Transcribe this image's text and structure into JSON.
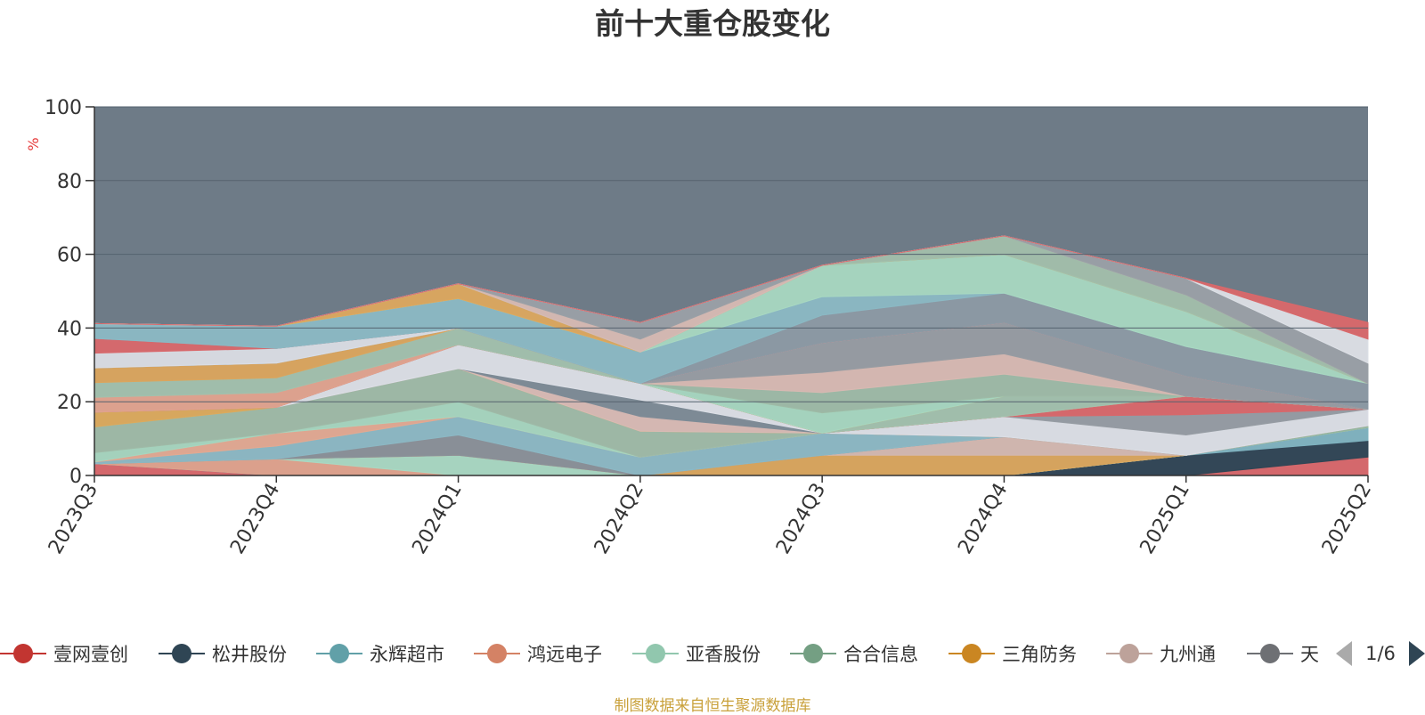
{
  "chart_data": {
    "type": "area",
    "title": "前十大重仓股变化",
    "ylabel": "%",
    "ylim": [
      0,
      100
    ],
    "yticks": [
      "0",
      "20",
      "40",
      "60",
      "80",
      "100"
    ],
    "categories": [
      "2023Q3",
      "2023Q4",
      "2024Q1",
      "2024Q2",
      "2024Q3",
      "2024Q4",
      "2025Q1",
      "2025Q2"
    ],
    "grid": true,
    "background_color": "#6e7b87",
    "series": [
      {
        "name": "壹网壹创",
        "color": "#d9676a",
        "values": [
          3.2,
          0,
          0,
          0,
          0,
          0,
          0,
          5
        ]
      },
      {
        "name": "松井股份",
        "color": "#2f4554",
        "values": [
          0,
          0,
          0,
          0,
          0,
          0,
          5.5,
          4.5
        ]
      },
      {
        "name": "永辉超市",
        "color": "#7fb3c0",
        "values": [
          0,
          0,
          0,
          0,
          0,
          0,
          0,
          3.5
        ]
      },
      {
        "name": "鸿远电子",
        "color": "#e0a28c",
        "values": [
          0,
          4.5,
          0,
          0,
          0,
          0,
          0,
          0
        ]
      },
      {
        "name": "亚香股份",
        "color": "#a9d8c2",
        "values": [
          0,
          0,
          5.5,
          0,
          0,
          0,
          0,
          0
        ]
      },
      {
        "name": "合合信息",
        "color": "#96b8a0",
        "values": [
          0,
          0,
          0,
          0,
          0,
          0,
          0,
          0.5
        ]
      },
      {
        "name": "三角防务",
        "color": "#daa55c",
        "values": [
          0,
          0,
          0,
          0,
          5.5,
          5.5,
          0,
          0
        ]
      },
      {
        "name": "九州通",
        "color": "#d4b8b0",
        "values": [
          0,
          0,
          0,
          0,
          0,
          5,
          0,
          0
        ]
      },
      {
        "name": "天铁",
        "color": "#8a9098",
        "values": [
          0,
          0,
          5.5,
          0,
          0,
          0,
          0,
          0
        ]
      },
      {
        "name": "",
        "color": "#8cb8c4",
        "values": [
          0.5,
          3.5,
          5,
          5,
          6,
          0,
          0,
          0
        ]
      },
      {
        "name": "",
        "color": "#e3a991",
        "values": [
          0,
          3.5,
          0,
          0,
          0,
          0,
          0,
          0
        ]
      },
      {
        "name": "",
        "color": "#a6d6bf",
        "values": [
          2.5,
          0,
          4,
          0,
          0,
          0,
          0,
          0
        ]
      },
      {
        "name": "",
        "color": "#9fbaa7",
        "values": [
          7,
          7,
          9,
          7,
          0,
          0,
          0,
          0
        ]
      },
      {
        "name": "",
        "color": "#dcaa5c",
        "values": [
          4,
          0,
          0,
          0,
          0,
          0,
          0,
          0
        ]
      },
      {
        "name": "",
        "color": "#d9bbb4",
        "values": [
          0,
          0,
          0,
          4,
          0,
          0,
          0,
          0
        ]
      },
      {
        "name": "",
        "color": "#7d8b96",
        "values": [
          0,
          0,
          0,
          4.5,
          0,
          0,
          0,
          0
        ]
      },
      {
        "name": "",
        "color": "#dcdfe6",
        "values": [
          0,
          0,
          6.5,
          4.5,
          0,
          5.5,
          5.5,
          4.5
        ]
      },
      {
        "name": "",
        "color": "#969ca3",
        "values": [
          0,
          0,
          0,
          0,
          0,
          0,
          5.5,
          0
        ]
      },
      {
        "name": "",
        "color": "#d9676a",
        "values": [
          0,
          0,
          0,
          0,
          0,
          0,
          5,
          0
        ]
      },
      {
        "name": "",
        "color": "#e1a38e",
        "values": [
          4,
          4,
          0,
          0,
          0,
          0,
          0,
          0
        ]
      },
      {
        "name": "",
        "color": "#a2c1ad",
        "values": [
          4,
          4,
          4.5,
          0,
          0,
          5.5,
          0,
          0
        ]
      },
      {
        "name": "",
        "color": "#dba55d",
        "values": [
          4,
          4,
          0,
          0,
          0,
          0,
          0,
          0
        ]
      },
      {
        "name": "",
        "color": "#a6d7c0",
        "values": [
          0,
          0,
          0,
          0,
          5.5,
          0,
          0,
          0
        ]
      },
      {
        "name": "",
        "color": "#9ebba6",
        "values": [
          0,
          0,
          0,
          0,
          5.5,
          6,
          0,
          0
        ]
      },
      {
        "name": "",
        "color": "#d8b9b2",
        "values": [
          0,
          0,
          0,
          0,
          5.5,
          5.5,
          0,
          0
        ]
      },
      {
        "name": "",
        "color": "#979ca2",
        "values": [
          0,
          0,
          0,
          0,
          8,
          8.5,
          5.5,
          0
        ]
      },
      {
        "name": "",
        "color": "#dadde4",
        "values": [
          4,
          4,
          0,
          0,
          0,
          0,
          0,
          0
        ]
      },
      {
        "name": "",
        "color": "#d9686b",
        "values": [
          4,
          0,
          0,
          0,
          0,
          0,
          0,
          0
        ]
      },
      {
        "name": "",
        "color": "#8c9aa4",
        "values": [
          0,
          0,
          0,
          0,
          7.5,
          8,
          8,
          7
        ]
      },
      {
        "name": "",
        "color": "#8bb9c4",
        "values": [
          4,
          6,
          8,
          8.5,
          5,
          0,
          0,
          0
        ]
      },
      {
        "name": "",
        "color": "#a8d8c1",
        "values": [
          0,
          0,
          0,
          0,
          8.5,
          10.5,
          9.5,
          0
        ]
      },
      {
        "name": "",
        "color": "#dca85e",
        "values": [
          0,
          0,
          4,
          0,
          0,
          0,
          0,
          0
        ]
      },
      {
        "name": "",
        "color": "#a2bfab",
        "values": [
          0,
          0,
          0,
          0,
          0,
          5,
          4.5,
          0
        ]
      },
      {
        "name": "",
        "color": "#d7bab3",
        "values": [
          0,
          0,
          0,
          3.5,
          0,
          0,
          0,
          0
        ]
      },
      {
        "name": "",
        "color": "#9aa0a6",
        "values": [
          0,
          0,
          0,
          4.5,
          0,
          0,
          4.5,
          5.5
        ]
      },
      {
        "name": "",
        "color": "#dde0e6",
        "values": [
          0,
          0,
          0,
          0,
          0,
          0,
          0,
          6.5
        ]
      },
      {
        "name": "",
        "color": "#d9686a",
        "values": [
          0,
          0,
          0,
          0,
          0,
          0,
          0,
          4.5
        ]
      }
    ]
  },
  "legend": {
    "items": [
      {
        "label": "壹网壹创",
        "color": "#c23531"
      },
      {
        "label": "松井股份",
        "color": "#2f4554"
      },
      {
        "label": "永辉超市",
        "color": "#61a0a8"
      },
      {
        "label": "鸿远电子",
        "color": "#d48265"
      },
      {
        "label": "亚香股份",
        "color": "#91c7ae"
      },
      {
        "label": "合合信息",
        "color": "#749f83"
      },
      {
        "label": "三角防务",
        "color": "#ca8622"
      },
      {
        "label": "九州通",
        "color": "#bda29a"
      },
      {
        "label": "天铁",
        "color": "#6e7074"
      }
    ],
    "page_label": "1/6",
    "prev_icon": "triangle-left-icon",
    "next_icon": "triangle-right-icon"
  },
  "footer": {
    "source": "制图数据来自恒生聚源数据库"
  }
}
